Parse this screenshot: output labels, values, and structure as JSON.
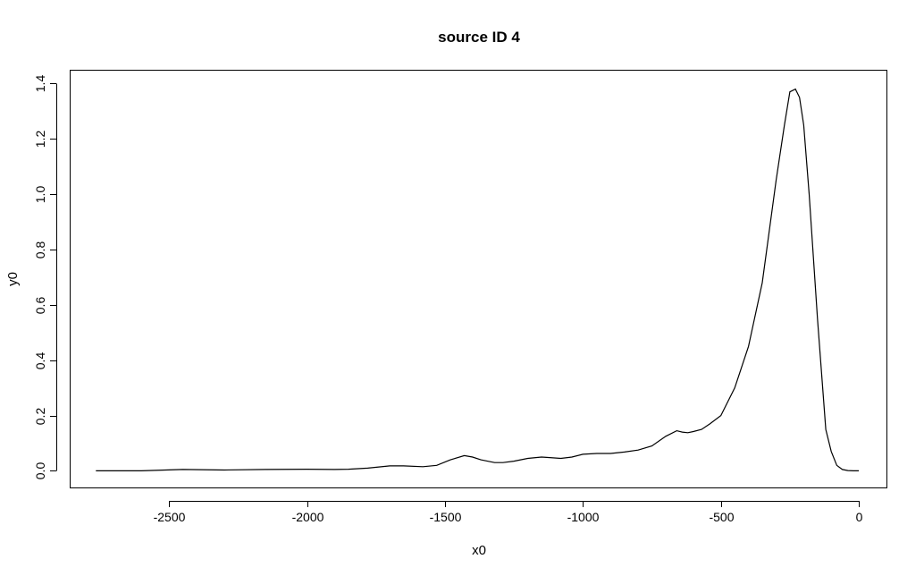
{
  "chart_data": {
    "type": "line",
    "title": "source ID 4",
    "xlabel": "x0",
    "ylabel": "y0",
    "xlim": [
      -2860,
      100
    ],
    "ylim": [
      -0.06,
      1.45
    ],
    "x_ticks": [
      -2500,
      -2000,
      -1500,
      -1000,
      -500,
      0
    ],
    "x_tick_labels": [
      "-2500",
      "-2000",
      "-1500",
      "-1000",
      "-500",
      "0"
    ],
    "y_ticks": [
      0.0,
      0.2,
      0.4,
      0.6,
      0.8,
      1.0,
      1.2,
      1.4
    ],
    "y_tick_labels": [
      "0.0",
      "0.2",
      "0.4",
      "0.6",
      "0.8",
      "1.0",
      "1.2",
      "1.4"
    ],
    "grid": false,
    "series": [
      {
        "x": [
          -2765,
          -2600,
          -2450,
          -2300,
          -2150,
          -2000,
          -1900,
          -1850,
          -1780,
          -1700,
          -1650,
          -1580,
          -1530,
          -1480,
          -1430,
          -1400,
          -1370,
          -1320,
          -1290,
          -1250,
          -1200,
          -1150,
          -1120,
          -1080,
          -1040,
          -1000,
          -950,
          -900,
          -850,
          -800,
          -750,
          -700,
          -660,
          -640,
          -620,
          -600,
          -570,
          -540,
          -500,
          -450,
          -400,
          -350,
          -300,
          -270,
          -250,
          -230,
          -215,
          -200,
          -180,
          -150,
          -120,
          -100,
          -80,
          -60,
          -40,
          -20,
          0
        ],
        "y": [
          0.0,
          0.0,
          0.005,
          0.003,
          0.005,
          0.006,
          0.005,
          0.006,
          0.01,
          0.018,
          0.018,
          0.015,
          0.02,
          0.04,
          0.055,
          0.05,
          0.04,
          0.03,
          0.03,
          0.035,
          0.045,
          0.05,
          0.048,
          0.045,
          0.05,
          0.06,
          0.063,
          0.063,
          0.068,
          0.075,
          0.09,
          0.125,
          0.145,
          0.14,
          0.138,
          0.142,
          0.15,
          0.17,
          0.2,
          0.3,
          0.45,
          0.68,
          1.05,
          1.25,
          1.37,
          1.38,
          1.35,
          1.25,
          1.0,
          0.55,
          0.15,
          0.07,
          0.02,
          0.005,
          0.001,
          0.0,
          0.0
        ]
      }
    ]
  }
}
